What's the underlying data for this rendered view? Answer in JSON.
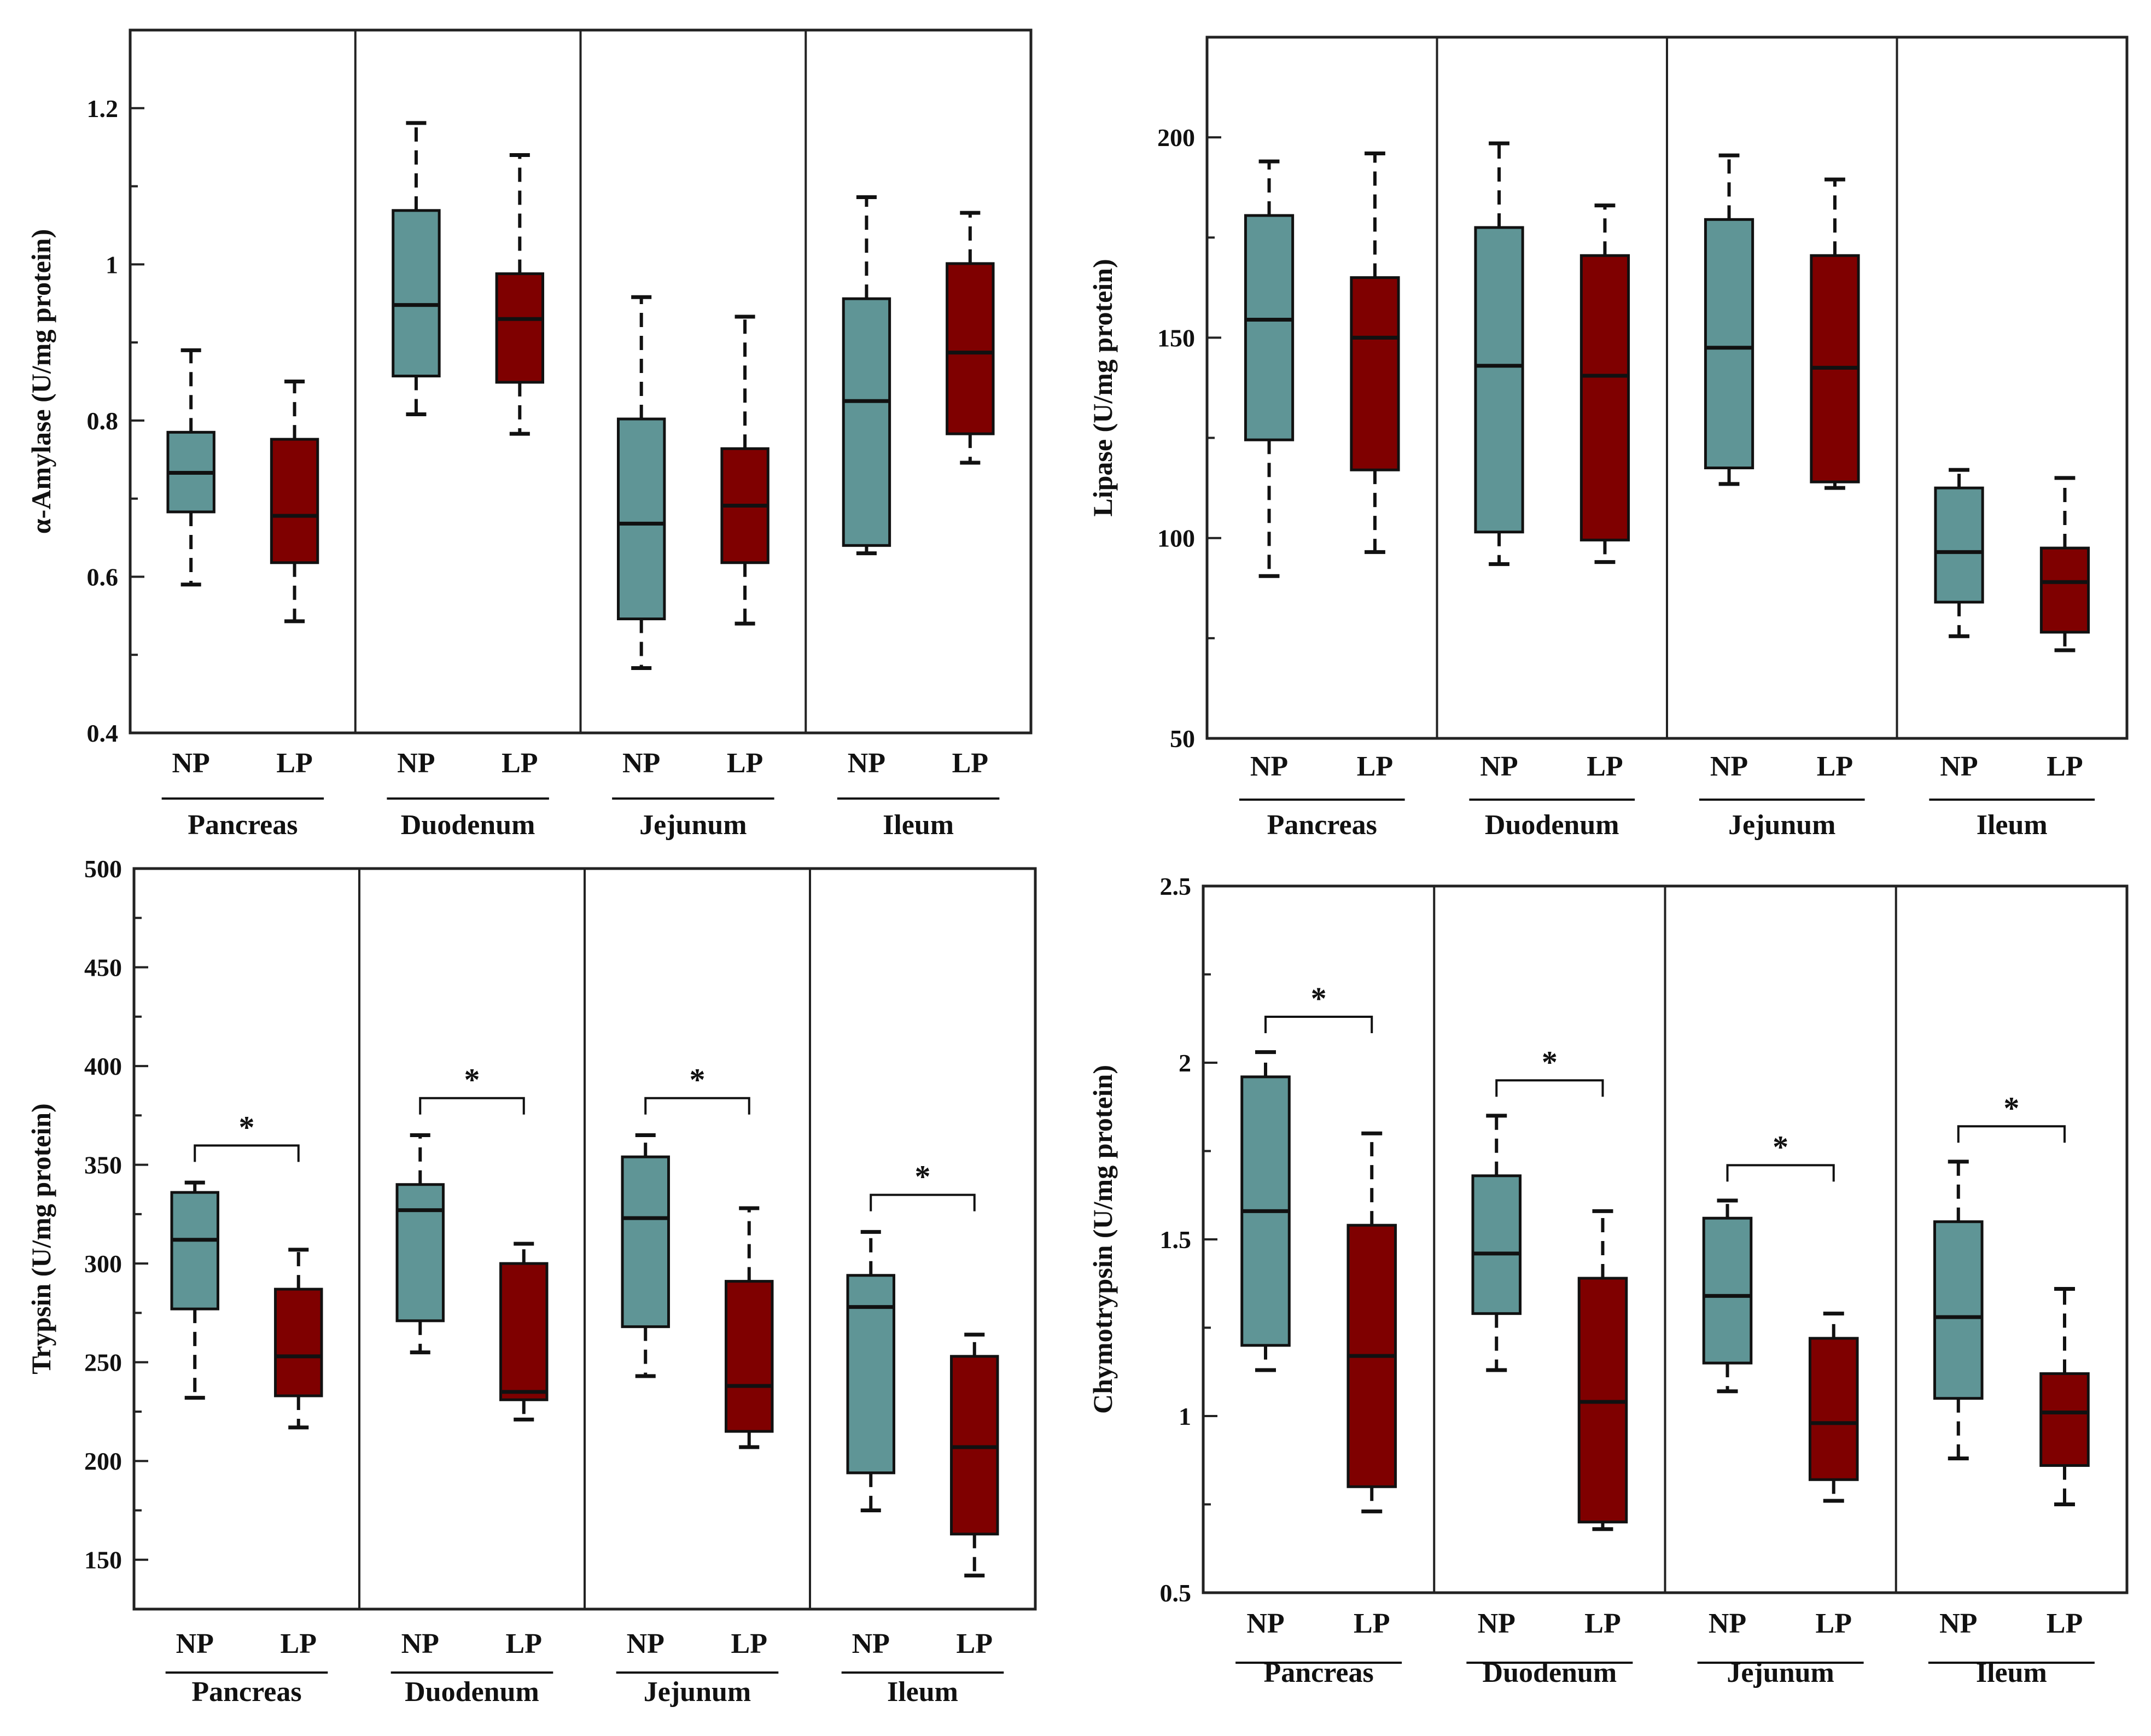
{
  "colors": {
    "np": "#5f9596",
    "lp": "#7f0000",
    "ink": "#111111"
  },
  "chart_data": [
    {
      "type": "box",
      "id": "amylase",
      "ylabel": "α-Amylase (U/mg protein)",
      "ylim": [
        0.4,
        1.3
      ],
      "yticks": [
        0.4,
        0.6,
        0.8,
        1,
        1.2
      ],
      "ytick_labels": [
        "0.4",
        "0.6",
        "0.8",
        "1",
        "1.2"
      ],
      "yminor": [
        0.5,
        0.7,
        0.9,
        1.1
      ],
      "groups": [
        {
          "name": "Pancreas",
          "labels": [
            "NP",
            "LP"
          ],
          "boxes": [
            {
              "min": 0.59,
              "q1": 0.683,
              "median": 0.733,
              "q3": 0.785,
              "max": 0.89
            },
            {
              "min": 0.543,
              "q1": 0.618,
              "median": 0.678,
              "q3": 0.776,
              "max": 0.85
            }
          ],
          "sig": false
        },
        {
          "name": "Duodenum",
          "labels": [
            "NP",
            "LP"
          ],
          "boxes": [
            {
              "min": 0.808,
              "q1": 0.857,
              "median": 0.948,
              "q3": 1.069,
              "max": 1.181
            },
            {
              "min": 0.783,
              "q1": 0.849,
              "median": 0.93,
              "q3": 0.988,
              "max": 1.14
            }
          ],
          "sig": false
        },
        {
          "name": "Jejunum",
          "labels": [
            "NP",
            "LP"
          ],
          "boxes": [
            {
              "min": 0.483,
              "q1": 0.546,
              "median": 0.668,
              "q3": 0.802,
              "max": 0.958
            },
            {
              "min": 0.54,
              "q1": 0.618,
              "median": 0.691,
              "q3": 0.764,
              "max": 0.933
            }
          ],
          "sig": false
        },
        {
          "name": "Ileum",
          "labels": [
            "NP",
            "LP"
          ],
          "boxes": [
            {
              "min": 0.63,
              "q1": 0.64,
              "median": 0.825,
              "q3": 0.956,
              "max": 1.086
            },
            {
              "min": 0.746,
              "q1": 0.783,
              "median": 0.887,
              "q3": 1.001,
              "max": 1.066
            }
          ],
          "sig": false
        }
      ]
    },
    {
      "type": "box",
      "id": "lipase",
      "ylabel": "Lipase (U/mg protein)",
      "ylim": [
        50,
        225
      ],
      "yticks": [
        50,
        100,
        150,
        200
      ],
      "ytick_labels": [
        "50",
        "100",
        "150",
        "200"
      ],
      "yminor": [
        75,
        125,
        175
      ],
      "groups": [
        {
          "name": "Pancreas",
          "labels": [
            "NP",
            "LP"
          ],
          "boxes": [
            {
              "min": 90.5,
              "q1": 124.5,
              "median": 154.5,
              "q3": 180.5,
              "max": 194
            },
            {
              "min": 96.5,
              "q1": 117,
              "median": 150,
              "q3": 165,
              "max": 196
            }
          ],
          "sig": false
        },
        {
          "name": "Duodenum",
          "labels": [
            "NP",
            "LP"
          ],
          "boxes": [
            {
              "min": 93.5,
              "q1": 101.5,
              "median": 143,
              "q3": 177.5,
              "max": 198.5
            },
            {
              "min": 94,
              "q1": 99.5,
              "median": 140.5,
              "q3": 170.5,
              "max": 183
            }
          ],
          "sig": false
        },
        {
          "name": "Jejunum",
          "labels": [
            "NP",
            "LP"
          ],
          "boxes": [
            {
              "min": 113.5,
              "q1": 117.5,
              "median": 147.5,
              "q3": 179.5,
              "max": 195.5
            },
            {
              "min": 112.5,
              "q1": 114,
              "median": 142.5,
              "q3": 170.5,
              "max": 189.5
            }
          ],
          "sig": false
        },
        {
          "name": "Ileum",
          "labels": [
            "NP",
            "LP"
          ],
          "boxes": [
            {
              "min": 75.5,
              "q1": 84,
              "median": 96.5,
              "q3": 112.5,
              "max": 117
            },
            {
              "min": 72,
              "q1": 76.5,
              "median": 89,
              "q3": 97.5,
              "max": 115
            }
          ],
          "sig": false
        }
      ]
    },
    {
      "type": "box",
      "id": "trypsin",
      "ylabel": "Trypsin (U/mg protein)",
      "ylim": [
        125,
        500
      ],
      "yticks": [
        150,
        200,
        250,
        300,
        350,
        400,
        450,
        500
      ],
      "ytick_labels": [
        "150",
        "200",
        "250",
        "300",
        "350",
        "400",
        "450",
        "500"
      ],
      "yminor": [
        175,
        225,
        275,
        325,
        375,
        425,
        475
      ],
      "groups": [
        {
          "name": "Pancreas",
          "labels": [
            "NP",
            "LP"
          ],
          "boxes": [
            {
              "min": 232,
              "q1": 277,
              "median": 312,
              "q3": 336,
              "max": 341
            },
            {
              "min": 217,
              "q1": 233,
              "median": 253,
              "q3": 287,
              "max": 307
            }
          ],
          "sig": true,
          "sig_label": "*"
        },
        {
          "name": "Duodenum",
          "labels": [
            "NP",
            "LP"
          ],
          "boxes": [
            {
              "min": 255,
              "q1": 271,
              "median": 327,
              "q3": 340,
              "max": 365
            },
            {
              "min": 221,
              "q1": 231,
              "median": 235,
              "q3": 300,
              "max": 310
            }
          ],
          "sig": true,
          "sig_label": "*"
        },
        {
          "name": "Jejunum",
          "labels": [
            "NP",
            "LP"
          ],
          "boxes": [
            {
              "min": 243,
              "q1": 268,
              "median": 323,
              "q3": 354,
              "max": 365
            },
            {
              "min": 207,
              "q1": 215,
              "median": 238,
              "q3": 291,
              "max": 328
            }
          ],
          "sig": true,
          "sig_label": "*"
        },
        {
          "name": "Ileum",
          "labels": [
            "NP",
            "LP"
          ],
          "boxes": [
            {
              "min": 175,
              "q1": 194,
              "median": 278,
              "q3": 294,
              "max": 316
            },
            {
              "min": 142,
              "q1": 163,
              "median": 207,
              "q3": 253,
              "max": 264
            }
          ],
          "sig": true,
          "sig_label": "*"
        }
      ]
    },
    {
      "type": "box",
      "id": "chymotrypsin",
      "ylabel": "Chymotrypsin (U/mg protein)",
      "ylim": [
        0.5,
        2.5
      ],
      "yticks": [
        0.5,
        1,
        1.5,
        2,
        2.5
      ],
      "ytick_labels": [
        "0.5",
        "1",
        "1.5",
        "2",
        "2.5"
      ],
      "yminor": [
        0.75,
        1.25,
        1.75,
        2.25
      ],
      "groups": [
        {
          "name": "Pancreas",
          "labels": [
            "NP",
            "LP"
          ],
          "boxes": [
            {
              "min": 1.13,
              "q1": 1.2,
              "median": 1.58,
              "q3": 1.96,
              "max": 2.03
            },
            {
              "min": 0.73,
              "q1": 0.8,
              "median": 1.17,
              "q3": 1.54,
              "max": 1.8
            }
          ],
          "sig": true,
          "sig_label": "*"
        },
        {
          "name": "Duodenum",
          "labels": [
            "NP",
            "LP"
          ],
          "boxes": [
            {
              "min": 1.13,
              "q1": 1.29,
              "median": 1.46,
              "q3": 1.68,
              "max": 1.85
            },
            {
              "min": 0.68,
              "q1": 0.7,
              "median": 1.04,
              "q3": 1.39,
              "max": 1.58
            }
          ],
          "sig": true,
          "sig_label": "*"
        },
        {
          "name": "Jejunum",
          "labels": [
            "NP",
            "LP"
          ],
          "boxes": [
            {
              "min": 1.07,
              "q1": 1.15,
              "median": 1.34,
              "q3": 1.56,
              "max": 1.61
            },
            {
              "min": 0.76,
              "q1": 0.82,
              "median": 0.98,
              "q3": 1.22,
              "max": 1.29
            }
          ],
          "sig": true,
          "sig_label": "*"
        },
        {
          "name": "Ileum",
          "labels": [
            "NP",
            "LP"
          ],
          "boxes": [
            {
              "min": 0.88,
              "q1": 1.05,
              "median": 1.28,
              "q3": 1.55,
              "max": 1.72
            },
            {
              "min": 0.75,
              "q1": 0.86,
              "median": 1.01,
              "q3": 1.12,
              "max": 1.36
            }
          ],
          "sig": true,
          "sig_label": "*"
        }
      ]
    }
  ]
}
